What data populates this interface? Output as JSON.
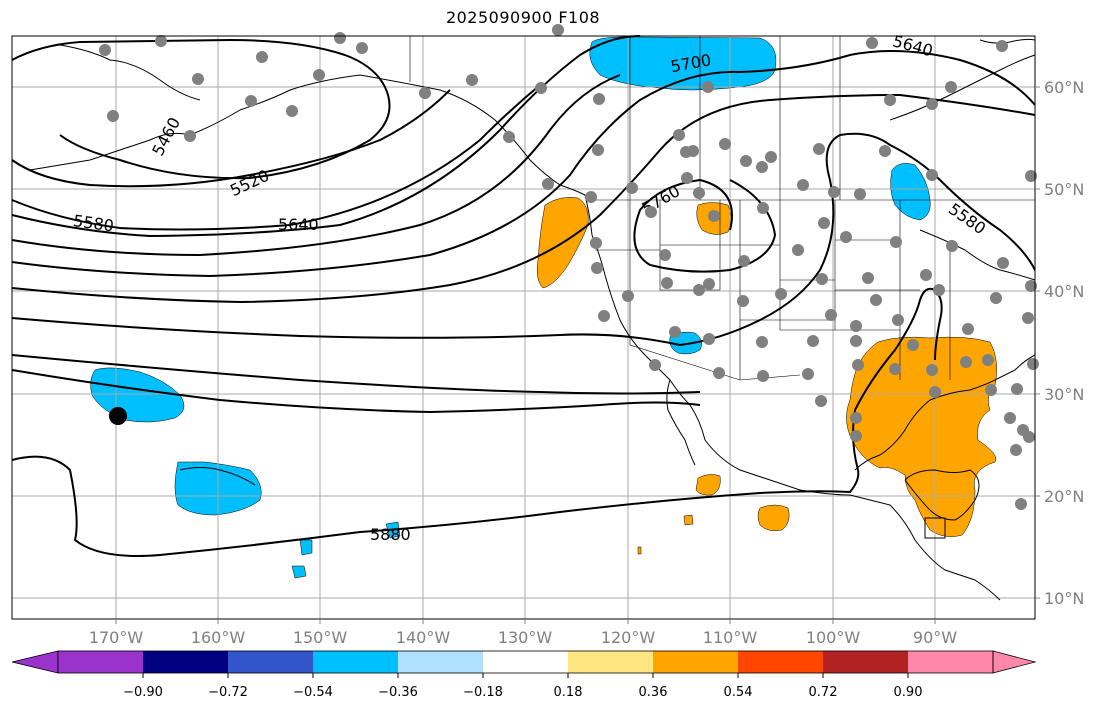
{
  "title": "2025090900 F108",
  "lon_ticks": [
    "170°W",
    "160°W",
    "150°W",
    "140°W",
    "130°W",
    "120°W",
    "110°W",
    "100°W",
    "90°W"
  ],
  "lat_ticks": [
    "60°N",
    "50°N",
    "40°N",
    "30°N",
    "20°N",
    "10°N"
  ],
  "contour_labels": [
    "5460",
    "5520",
    "5580",
    "5640",
    "5700",
    "5760",
    "5640",
    "5580",
    "5880"
  ],
  "colorbar": {
    "tick_labels": [
      "−0.90",
      "−0.72",
      "−0.54",
      "−0.36",
      "−0.18",
      "0.18",
      "0.36",
      "0.54",
      "0.72",
      "0.90"
    ],
    "colors": {
      "under": "#9933cc",
      "c1": "#000080",
      "c2": "#3355cc",
      "c3": "#00bfff",
      "c4": "#b0e0ff",
      "c5": "#ffffff",
      "c6": "#ffe680",
      "c7": "#ffa500",
      "c8": "#ff4500",
      "c9": "#b22222",
      "over": "#ff88aa"
    }
  },
  "colors": {
    "negative_anomaly": "#00bfff",
    "positive_anomaly": "#ffa500",
    "station_dot": "#808080",
    "grid": "#aaaaaa"
  }
}
